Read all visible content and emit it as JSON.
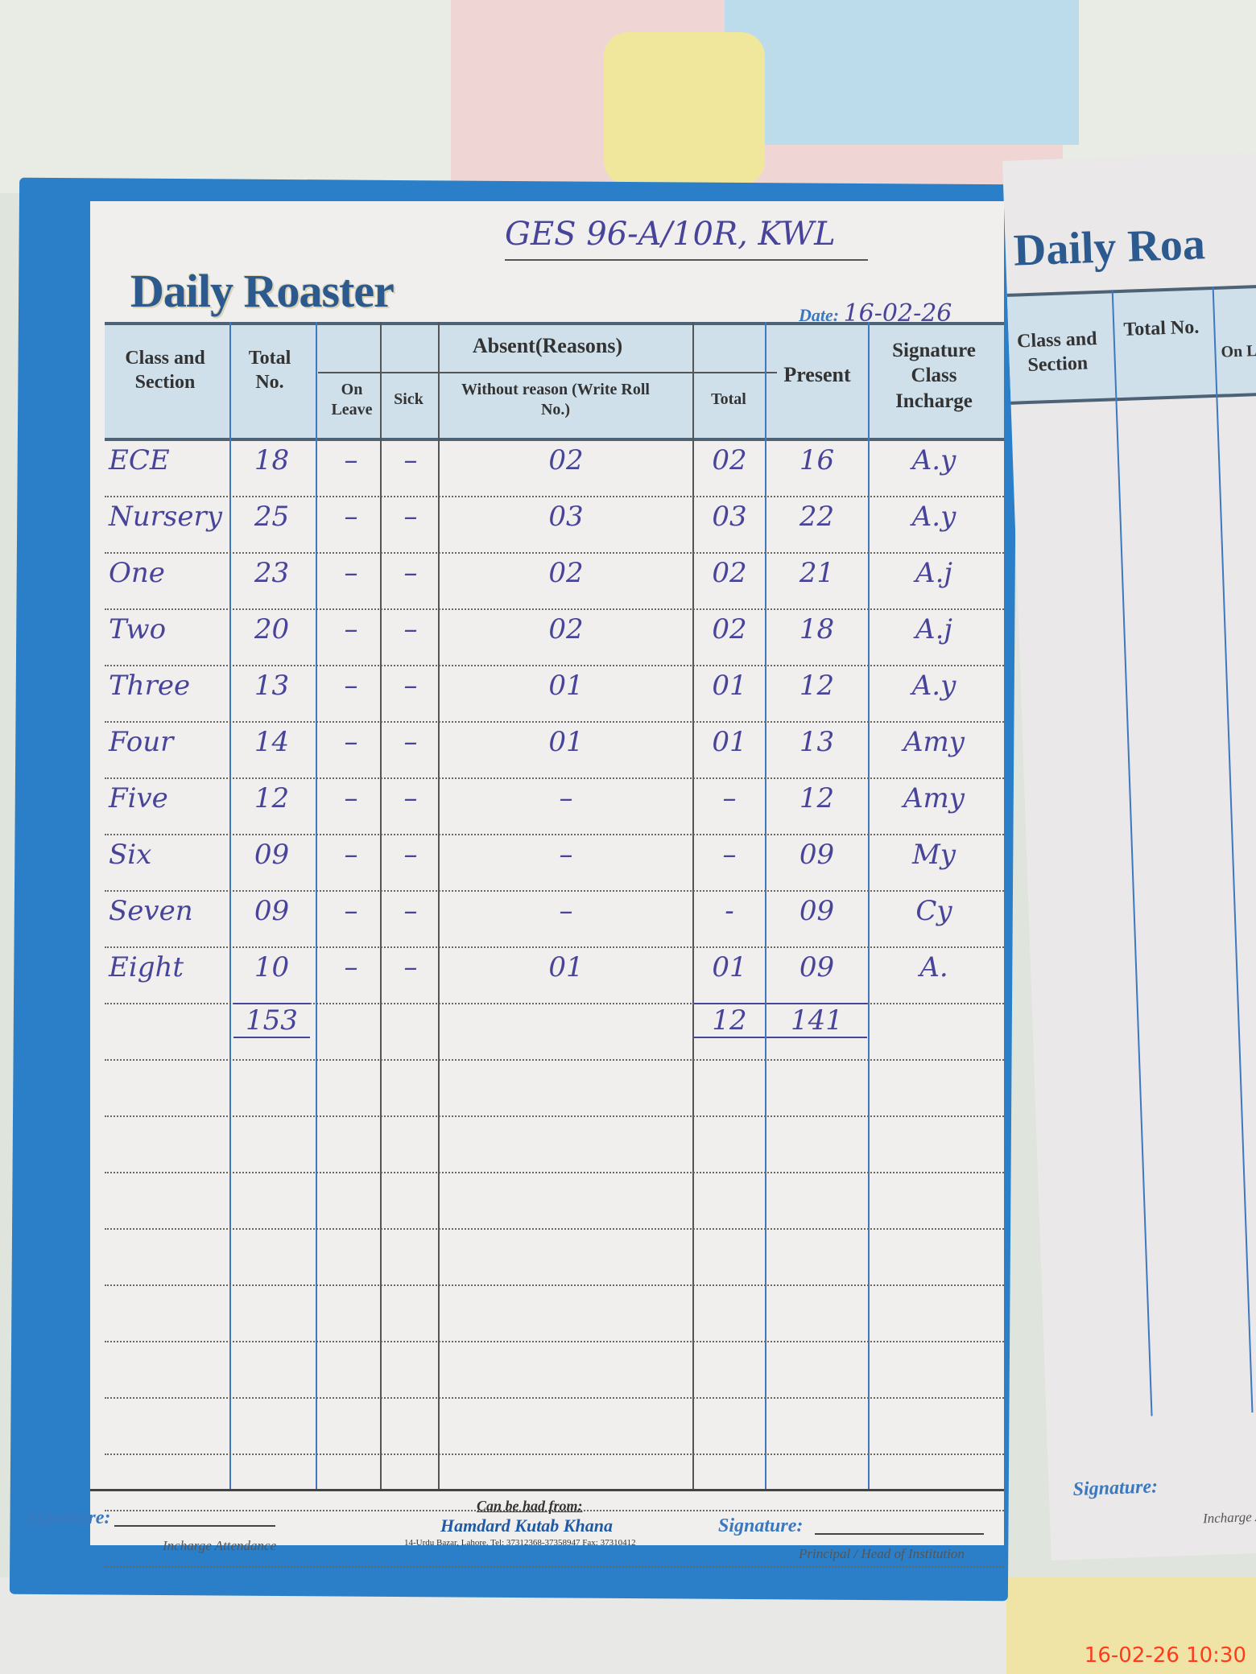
{
  "document": {
    "title": "Daily Roaster",
    "school": "GES 96-A/10R, KWL",
    "date_label": "Date:",
    "date": "16-02-26",
    "headers": {
      "class_section": "Class and Section",
      "total_no": "Total No.",
      "absent_reasons": "Absent(Reasons)",
      "on_leave": "On Leave",
      "sick": "Sick",
      "without_reason": "Without reason (Write Roll No.)",
      "absent_total": "Total",
      "present": "Present",
      "signature": "Signature Class Incharge"
    },
    "rows": [
      {
        "class": "ECE",
        "total": "18",
        "on_leave": "–",
        "sick": "–",
        "without_reason": "02",
        "absent_total": "02",
        "present": "16",
        "signature": "A.y"
      },
      {
        "class": "Nursery",
        "total": "25",
        "on_leave": "–",
        "sick": "–",
        "without_reason": "03",
        "absent_total": "03",
        "present": "22",
        "signature": "A.y"
      },
      {
        "class": "One",
        "total": "23",
        "on_leave": "–",
        "sick": "–",
        "without_reason": "02",
        "absent_total": "02",
        "present": "21",
        "signature": "A.j"
      },
      {
        "class": "Two",
        "total": "20",
        "on_leave": "–",
        "sick": "–",
        "without_reason": "02",
        "absent_total": "02",
        "present": "18",
        "signature": "A.j"
      },
      {
        "class": "Three",
        "total": "13",
        "on_leave": "–",
        "sick": "–",
        "without_reason": "01",
        "absent_total": "01",
        "present": "12",
        "signature": "A.y"
      },
      {
        "class": "Four",
        "total": "14",
        "on_leave": "–",
        "sick": "–",
        "without_reason": "01",
        "absent_total": "01",
        "present": "13",
        "signature": "Amy"
      },
      {
        "class": "Five",
        "total": "12",
        "on_leave": "–",
        "sick": "–",
        "without_reason": "–",
        "absent_total": "–",
        "present": "12",
        "signature": "Amy"
      },
      {
        "class": "Six",
        "total": "09",
        "on_leave": "–",
        "sick": "–",
        "without_reason": "–",
        "absent_total": "–",
        "present": "09",
        "signature": "My"
      },
      {
        "class": "Seven",
        "total": "09",
        "on_leave": "–",
        "sick": "–",
        "without_reason": "–",
        "absent_total": "-",
        "present": "09",
        "signature": "Cy"
      },
      {
        "class": "Eight",
        "total": "10",
        "on_leave": "–",
        "sick": "–",
        "without_reason": "01",
        "absent_total": "01",
        "present": "09",
        "signature": "A."
      }
    ],
    "totals": {
      "total": "153",
      "absent_total": "12",
      "present": "141"
    },
    "footer": {
      "signature_label": "Signature:",
      "incharge": "Incharge Attendance",
      "can_be_had": "Can be had from:",
      "publisher": "Hamdard Kutab Khana",
      "publisher_address": "14-Urdu Bazar, Lahore. Tel: 37312368-37358947 Fax: 37310412",
      "signature_label_2": "Signature:",
      "principal": "Principal / Head of Institution"
    }
  },
  "right_page": {
    "title": "Daily Roa",
    "class_section": "Class and Section",
    "total_no": "Total No.",
    "on_leave": "On Lea",
    "signature_label": "Signature:",
    "incharge": "Incharge Att"
  },
  "timestamp": "16-02-26 10:30",
  "colors": {
    "ink": "#47449a",
    "cover": "#2a7fc8",
    "title": "#2c5a8e",
    "timestamp": "#ff3b1e"
  }
}
